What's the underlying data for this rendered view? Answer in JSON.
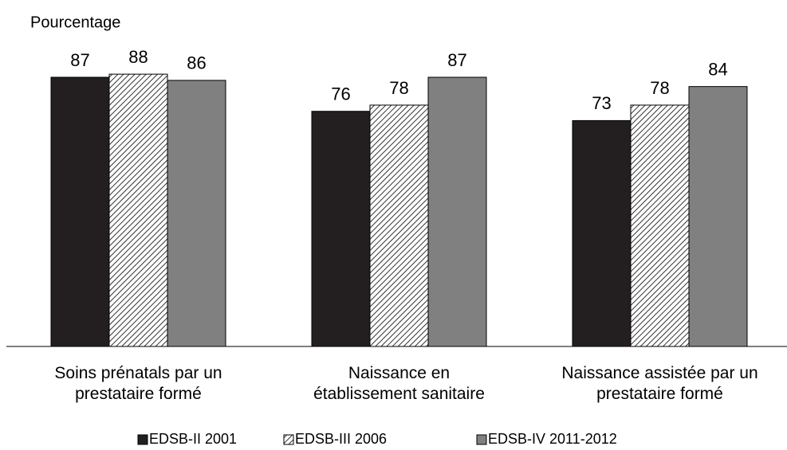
{
  "chart_data": {
    "type": "bar",
    "y_label": "Pourcentage",
    "categories": [
      "Soins prénatals par un\nprestataire formé",
      "Naissance en\nétablissement sanitaire",
      "Naissance assistée par un\nprestataire formé"
    ],
    "series": [
      {
        "name": "EDSB-II 2001",
        "color": "#231f20",
        "values": [
          87,
          76,
          73
        ]
      },
      {
        "name": "EDSB-III 2006",
        "color": "#ffffff",
        "pattern": "hatch",
        "values": [
          88,
          78,
          78
        ]
      },
      {
        "name": "EDSB-IV 2011-2012",
        "color": "#808080",
        "values": [
          86,
          87,
          84
        ]
      }
    ],
    "ylim": [
      0,
      100
    ],
    "legend": "bottom"
  }
}
